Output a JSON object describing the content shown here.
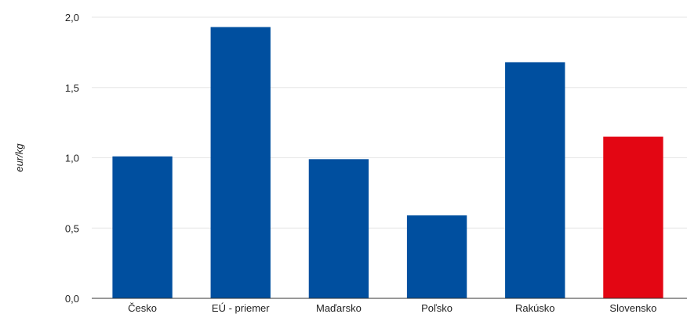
{
  "chart_data": {
    "type": "bar",
    "ylabel": "eur/kg",
    "ylim": [
      0,
      2
    ],
    "yticks": [
      "0,0",
      "0,5",
      "1,0",
      "1,5",
      "2,0"
    ],
    "ytick_values": [
      0,
      0.5,
      1.0,
      1.5,
      2.0
    ],
    "grid": true,
    "categories": [
      "Česko",
      "EÚ - priemer",
      "Maďarsko",
      "Poľsko",
      "Rakúsko",
      "Slovensko"
    ],
    "values": [
      1.01,
      1.93,
      0.99,
      0.59,
      1.68,
      1.15
    ],
    "colors": [
      "#004f9f",
      "#004f9f",
      "#004f9f",
      "#004f9f",
      "#004f9f",
      "#e30613"
    ]
  }
}
